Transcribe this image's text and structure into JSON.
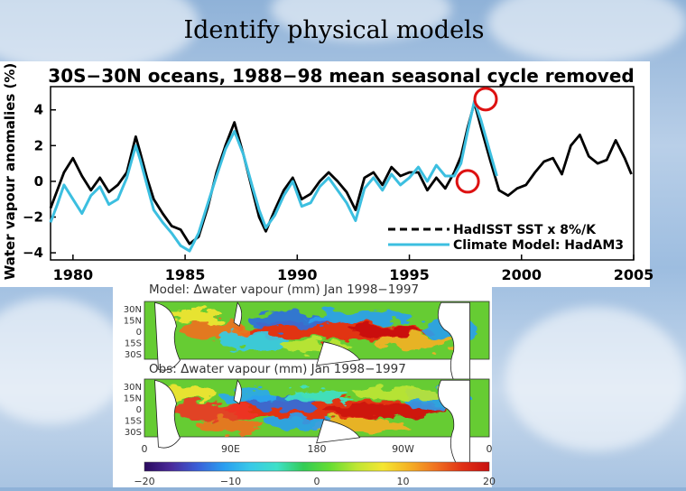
{
  "slide": {
    "title": "Identify physical models"
  },
  "chart_data": [
    {
      "type": "line",
      "title": "30S−30N oceans, 1988−98 mean seasonal cycle removed",
      "ylabel": "Water vapour anomalies (%)",
      "xlabel": "",
      "xlim": [
        1979,
        2005
      ],
      "ylim": [
        -4.4,
        5.3
      ],
      "x_ticks": [
        1980,
        1985,
        1990,
        1995,
        2000,
        2005
      ],
      "y_ticks": [
        -4,
        -2,
        0,
        2,
        4
      ],
      "x_tick_labels": [
        "1980",
        "1985",
        "1990",
        "1995",
        "2000",
        "2005"
      ],
      "y_tick_labels": [
        "−4",
        "−2",
        "0",
        "2",
        "4"
      ],
      "series": [
        {
          "name": "HadISST SST × 8%/K",
          "legend_label": "HadISST SST x 8%/K",
          "style": "solid-black-with-dashed-legend",
          "color": "#000000",
          "x": [
            1979.0,
            1979.3,
            1979.6,
            1980.0,
            1980.4,
            1980.8,
            1981.2,
            1981.6,
            1982.0,
            1982.4,
            1982.8,
            1983.0,
            1983.3,
            1983.6,
            1984.0,
            1984.4,
            1984.8,
            1985.2,
            1985.6,
            1986.0,
            1986.4,
            1986.8,
            1987.2,
            1987.6,
            1988.0,
            1988.3,
            1988.6,
            1989.0,
            1989.4,
            1989.8,
            1990.2,
            1990.6,
            1991.0,
            1991.4,
            1991.8,
            1992.2,
            1992.6,
            1993.0,
            1993.4,
            1993.8,
            1994.2,
            1994.6,
            1995.0,
            1995.4,
            1995.8,
            1996.2,
            1996.6,
            1997.0,
            1997.3,
            1997.6,
            1997.9,
            1998.2,
            1998.6,
            1999.0,
            1999.4,
            1999.8,
            2000.2,
            2000.6,
            2001.0,
            2001.4,
            2001.8,
            2002.2,
            2002.6,
            2003.0,
            2003.4,
            2003.8,
            2004.2,
            2004.6,
            2004.9
          ],
          "values": [
            -1.5,
            -0.5,
            0.5,
            1.3,
            0.3,
            -0.5,
            0.2,
            -0.6,
            -0.2,
            0.5,
            2.5,
            1.6,
            0.2,
            -1.0,
            -1.8,
            -2.5,
            -2.7,
            -3.5,
            -3.1,
            -1.5,
            0.5,
            2.0,
            3.3,
            1.5,
            -0.5,
            -2.0,
            -2.8,
            -1.6,
            -0.5,
            0.2,
            -1.0,
            -0.7,
            0.0,
            0.5,
            0.0,
            -0.6,
            -1.6,
            0.2,
            0.5,
            -0.2,
            0.8,
            0.3,
            0.5,
            0.5,
            -0.5,
            0.2,
            -0.4,
            0.5,
            1.4,
            3.0,
            4.4,
            3.0,
            1.2,
            -0.5,
            -0.8,
            -0.4,
            -0.2,
            0.5,
            1.1,
            1.3,
            0.4,
            2.0,
            2.6,
            1.4,
            1.0,
            1.2,
            2.3,
            1.3,
            0.4
          ]
        },
        {
          "name": "Climate Model: HadAM3",
          "legend_label": "Climate Model: HadAM3",
          "style": "solid-cyan",
          "color": "#3cbfe0",
          "x": [
            1979.0,
            1979.3,
            1979.6,
            1980.0,
            1980.4,
            1980.8,
            1981.2,
            1981.6,
            1982.0,
            1982.4,
            1982.8,
            1983.0,
            1983.3,
            1983.6,
            1984.0,
            1984.4,
            1984.8,
            1985.2,
            1985.6,
            1986.0,
            1986.4,
            1986.8,
            1987.2,
            1987.6,
            1988.0,
            1988.3,
            1988.6,
            1989.0,
            1989.4,
            1989.8,
            1990.2,
            1990.6,
            1991.0,
            1991.4,
            1991.8,
            1992.2,
            1992.6,
            1993.0,
            1993.4,
            1993.8,
            1994.2,
            1994.6,
            1995.0,
            1995.4,
            1995.8,
            1996.2,
            1996.6,
            1997.0,
            1997.3,
            1997.6,
            1997.9,
            1998.2,
            1998.6,
            1998.9
          ],
          "values": [
            -2.3,
            -1.3,
            -0.2,
            -1.0,
            -1.8,
            -0.8,
            -0.3,
            -1.3,
            -1.0,
            0.2,
            2.0,
            1.2,
            -0.2,
            -1.6,
            -2.3,
            -2.9,
            -3.6,
            -3.9,
            -2.9,
            -1.3,
            0.3,
            1.8,
            2.8,
            1.5,
            -0.3,
            -1.6,
            -2.6,
            -1.9,
            -0.8,
            0.0,
            -1.4,
            -1.2,
            -0.3,
            0.2,
            -0.5,
            -1.2,
            -2.2,
            -0.4,
            0.2,
            -0.5,
            0.4,
            -0.2,
            0.2,
            0.8,
            0.0,
            0.9,
            0.3,
            0.3,
            1.0,
            2.8,
            4.5,
            3.4,
            1.6,
            0.3
          ]
        }
      ],
      "annotations": [
        {
          "type": "circle",
          "color": "#dd1111",
          "x": 1997.6,
          "y": 0.0
        },
        {
          "type": "circle",
          "color": "#dd1111",
          "x": 1998.4,
          "y": 4.6
        }
      ]
    },
    {
      "type": "heatmap",
      "title": "Model: Δwater vapour (mm) Jan 1998−1997",
      "y_tick_labels": [
        "30N",
        "15N",
        "0",
        "15S",
        "30S"
      ]
    },
    {
      "type": "heatmap",
      "title": "Obs: Δwater vapour (mm) Jan 1998−1997",
      "y_tick_labels": [
        "30N",
        "15N",
        "0",
        "15S",
        "30S"
      ],
      "x_tick_labels": [
        "0",
        "90E",
        "180",
        "90W",
        "0"
      ],
      "colorbar": {
        "range": [
          -20,
          20
        ],
        "tick_labels": [
          "−20",
          "−10",
          "0",
          "10",
          "20"
        ],
        "colors": [
          "#2a0a5e",
          "#4a2a9a",
          "#3a5fd8",
          "#2a9ef0",
          "#39c9e8",
          "#3fe0c8",
          "#33cc55",
          "#66dd33",
          "#bfe633",
          "#f5e631",
          "#f5b025",
          "#f07020",
          "#e03015",
          "#c81010"
        ]
      }
    }
  ]
}
